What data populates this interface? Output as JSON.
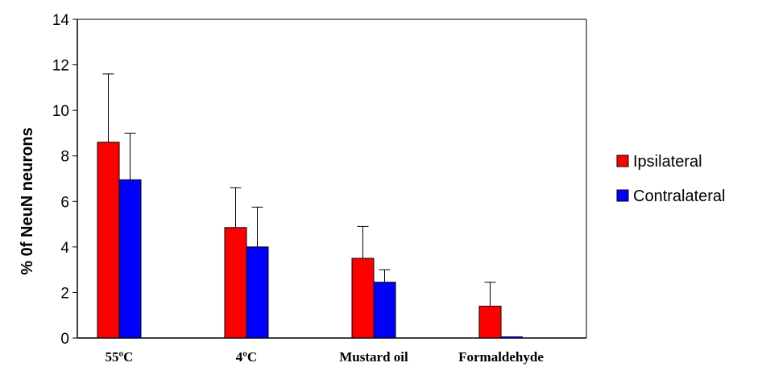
{
  "chart_data": {
    "type": "bar",
    "title": "",
    "xlabel": "",
    "ylabel": "% 0f NeuN neurons",
    "ylim": [
      0,
      14
    ],
    "yticks": [
      0,
      2,
      4,
      6,
      8,
      10,
      12,
      14
    ],
    "categories": [
      "55ºC",
      "4ºC",
      "Mustard oil",
      "Formaldehyde"
    ],
    "series": [
      {
        "name": "Ipsilateral",
        "color": "#ff0000",
        "values": [
          8.6,
          4.85,
          3.5,
          1.4
        ],
        "errors": [
          3.0,
          1.75,
          1.4,
          1.05
        ]
      },
      {
        "name": "Contralateral",
        "color": "#0000ff",
        "values": [
          6.95,
          4.0,
          2.45,
          0.0
        ],
        "errors": [
          2.05,
          1.75,
          0.55,
          0.0
        ]
      }
    ],
    "grid": false,
    "legend": "right"
  }
}
